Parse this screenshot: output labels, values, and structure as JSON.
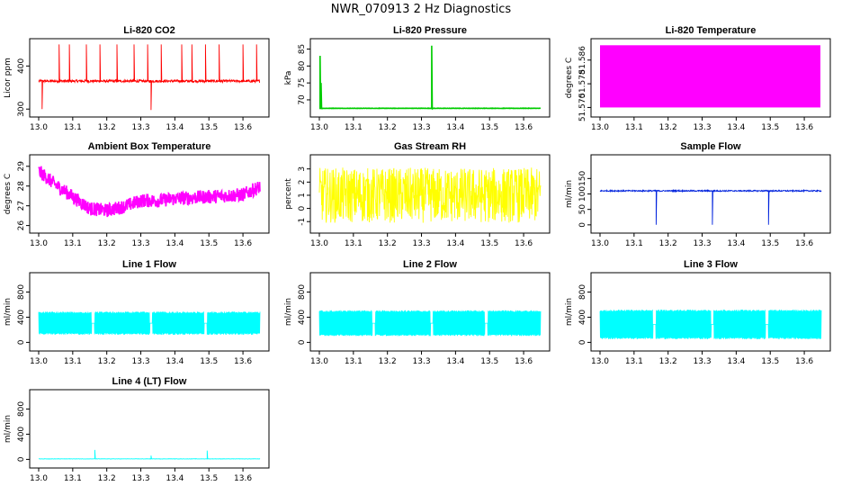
{
  "title": "NWR_070913 2 Hz Diagnostics",
  "chart_data": [
    {
      "type": "line",
      "title": "Li-820 CO2",
      "ylabel": "Licor ppm",
      "color": "#ff0000",
      "xlim": [
        13.0,
        13.65
      ],
      "ylim": [
        290,
        455
      ],
      "xticks": [
        "13.0",
        "13.1",
        "13.2",
        "13.3",
        "13.4",
        "13.5",
        "13.6"
      ],
      "yticks": [
        "300",
        "400"
      ],
      "series": [
        {
          "base": 365,
          "noise": 3,
          "spikes": [
            [
              13.01,
              300
            ],
            [
              13.06,
              450
            ],
            [
              13.09,
              450
            ],
            [
              13.14,
              450
            ],
            [
              13.18,
              450
            ],
            [
              13.23,
              450
            ],
            [
              13.28,
              450
            ],
            [
              13.32,
              450
            ],
            [
              13.33,
              298
            ],
            [
              13.36,
              450
            ],
            [
              13.42,
              450
            ],
            [
              13.45,
              450
            ],
            [
              13.49,
              450
            ],
            [
              13.53,
              450
            ],
            [
              13.6,
              450
            ],
            [
              13.64,
              450
            ]
          ]
        }
      ]
    },
    {
      "type": "line",
      "title": "Li-820 Pressure",
      "ylabel": "kPa",
      "color": "#00cc00",
      "xlim": [
        13.0,
        13.65
      ],
      "ylim": [
        66,
        87
      ],
      "xticks": [
        "13.0",
        "13.1",
        "13.2",
        "13.3",
        "13.4",
        "13.5",
        "13.6"
      ],
      "yticks": [
        "70",
        "75",
        "80",
        "85"
      ],
      "series": [
        {
          "base": 67.5,
          "noise": 0.05,
          "spikes": [
            [
              13.002,
              83
            ],
            [
              13.005,
              75
            ],
            [
              13.33,
              86
            ]
          ]
        }
      ]
    },
    {
      "type": "area",
      "title": "Li-820 Temperature",
      "ylabel": "degrees C",
      "color": "#ff00ff",
      "xlim": [
        13.0,
        13.65
      ],
      "ylim": [
        51.568,
        51.592
      ],
      "xticks": [
        "13.0",
        "13.1",
        "13.2",
        "13.3",
        "13.4",
        "13.5",
        "13.6"
      ],
      "yticks": [
        "51.570",
        "51.578",
        "51.586"
      ],
      "series": [
        {
          "fill": [
            51.57,
            51.591
          ]
        }
      ]
    },
    {
      "type": "line",
      "title": "Ambient Box Temperature",
      "ylabel": "degrees C",
      "color": "#ff00ff",
      "xlim": [
        13.0,
        13.65
      ],
      "ylim": [
        25.8,
        29.4
      ],
      "xticks": [
        "13.0",
        "13.1",
        "13.2",
        "13.3",
        "13.4",
        "13.5",
        "13.6"
      ],
      "yticks": [
        "26",
        "27",
        "28",
        "29"
      ],
      "series": [
        {
          "trend": [
            [
              13.0,
              28.9
            ],
            [
              13.05,
              28.2
            ],
            [
              13.1,
              27.6
            ],
            [
              13.15,
              27.0
            ],
            [
              13.2,
              26.9
            ],
            [
              13.25,
              27.1
            ],
            [
              13.3,
              27.4
            ],
            [
              13.35,
              27.4
            ],
            [
              13.4,
              27.5
            ],
            [
              13.5,
              27.6
            ],
            [
              13.6,
              27.7
            ],
            [
              13.65,
              28.1
            ]
          ],
          "noise": 0.35
        }
      ]
    },
    {
      "type": "line",
      "title": "Gas Stream RH",
      "ylabel": "percent",
      "color": "#ffff00",
      "xlim": [
        13.0,
        13.65
      ],
      "ylim": [
        -1.6,
        3.8
      ],
      "xticks": [
        "13.0",
        "13.1",
        "13.2",
        "13.3",
        "13.4",
        "13.5",
        "13.6"
      ],
      "yticks": [
        "-1",
        "0",
        "1",
        "2",
        "3"
      ],
      "series": [
        {
          "base": 1.0,
          "noise": 2.1
        }
      ]
    },
    {
      "type": "line",
      "title": "Sample Flow",
      "ylabel": "ml/min",
      "color": "#0022dd",
      "xlim": [
        13.0,
        13.65
      ],
      "ylim": [
        -15,
        215
      ],
      "xticks": [
        "13.0",
        "13.1",
        "13.2",
        "13.3",
        "13.4",
        "13.5",
        "13.6"
      ],
      "yticks": [
        "0",
        "50",
        "100",
        "150"
      ],
      "series": [
        {
          "base": 110,
          "noise": 2,
          "spikes": [
            [
              13.165,
              0
            ],
            [
              13.33,
              0
            ],
            [
              13.495,
              0
            ]
          ]
        }
      ]
    },
    {
      "type": "line",
      "title": "Line 1 Flow",
      "ylabel": "ml/min",
      "color": "#00ffff",
      "xlim": [
        13.0,
        13.65
      ],
      "ylim": [
        -80,
        1050
      ],
      "xticks": [
        "13.0",
        "13.1",
        "13.2",
        "13.3",
        "13.4",
        "13.5",
        "13.6"
      ],
      "yticks": [
        "0",
        "400",
        "800"
      ],
      "series": [
        {
          "band": [
            120,
            490
          ],
          "gaps": [
            13.16,
            13.33,
            13.49
          ]
        }
      ]
    },
    {
      "type": "line",
      "title": "Line 2 Flow",
      "ylabel": "ml/min",
      "color": "#00ffff",
      "xlim": [
        13.0,
        13.65
      ],
      "ylim": [
        -80,
        1050
      ],
      "xticks": [
        "13.0",
        "13.1",
        "13.2",
        "13.3",
        "13.4",
        "13.5",
        "13.6"
      ],
      "yticks": [
        "0",
        "400",
        "800"
      ],
      "series": [
        {
          "band": [
            100,
            510
          ],
          "gaps": [
            13.16,
            13.33,
            13.49
          ]
        }
      ]
    },
    {
      "type": "line",
      "title": "Line 3 Flow",
      "ylabel": "ml/min",
      "color": "#00ffff",
      "xlim": [
        13.0,
        13.65
      ],
      "ylim": [
        -80,
        1050
      ],
      "xticks": [
        "13.0",
        "13.1",
        "13.2",
        "13.3",
        "13.4",
        "13.5",
        "13.6"
      ],
      "yticks": [
        "0",
        "400",
        "800"
      ],
      "series": [
        {
          "band": [
            50,
            520
          ],
          "gaps": [
            13.16,
            13.33,
            13.49
          ]
        }
      ]
    },
    {
      "type": "line",
      "title": "Line 4 (LT) Flow",
      "ylabel": "ml/min",
      "color": "#00ffff",
      "xlim": [
        13.0,
        13.65
      ],
      "ylim": [
        -80,
        1050
      ],
      "xticks": [
        "13.0",
        "13.1",
        "13.2",
        "13.3",
        "13.4",
        "13.5",
        "13.6"
      ],
      "yticks": [
        "0",
        "400",
        "800"
      ],
      "series": [
        {
          "base": 8,
          "noise": 2,
          "spikes": [
            [
              13.165,
              150
            ],
            [
              13.33,
              60
            ],
            [
              13.495,
              140
            ]
          ]
        }
      ]
    }
  ]
}
